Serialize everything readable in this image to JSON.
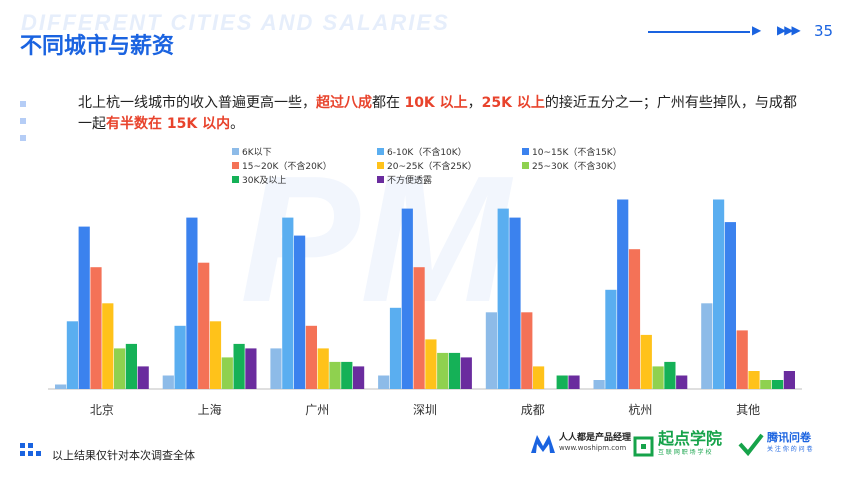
{
  "header": {
    "watermark": "DIFFERENT CITIES AND SALARIES",
    "title": "不同城市与薪资",
    "page_number": "35"
  },
  "summary": {
    "p1": "北上杭一线城市的收入普遍更高一些，",
    "h1": "超过八成",
    "p2": "都在 ",
    "h2": "10K 以上",
    "p3": "，",
    "h3": "25K 以上",
    "p4": "的接近五分之一；广州有些掉队，与成都一起",
    "h4": "有半数在 15K 以内",
    "p5": "。"
  },
  "footer": {
    "note": "以上结果仅针对本次调查全体",
    "logo1_name": "人人都是产品经理",
    "logo1_url": "www.woshipm.com",
    "logo2_name": "起点学院",
    "logo2_sub": "互 联 网 职 场 学 校",
    "logo3_name": "腾讯问卷",
    "logo3_sub": "关 注 你 的 问 卷"
  },
  "chart_data": {
    "type": "bar",
    "categories": [
      "北京",
      "上海",
      "广州",
      "深圳",
      "成都",
      "杭州",
      "其他"
    ],
    "series": [
      {
        "name": "6K以下",
        "color": "#8dbbe8",
        "values": [
          1,
          3,
          9,
          3,
          17,
          2,
          19
        ]
      },
      {
        "name": "6-10K（不含10K）",
        "color": "#5aaef0",
        "values": [
          15,
          14,
          38,
          18,
          40,
          22,
          42
        ]
      },
      {
        "name": "10~15K（不含15K）",
        "color": "#3b82ee",
        "values": [
          36,
          38,
          34,
          40,
          38,
          42,
          37
        ]
      },
      {
        "name": "15~20K（不含20K）",
        "color": "#f47257",
        "values": [
          27,
          28,
          14,
          27,
          17,
          31,
          13
        ]
      },
      {
        "name": "20~25K（不含25K）",
        "color": "#ffc21a",
        "values": [
          19,
          15,
          9,
          11,
          5,
          12,
          4
        ]
      },
      {
        "name": "25~30K（不含30K）",
        "color": "#8fd14f",
        "values": [
          9,
          7,
          6,
          8,
          0,
          5,
          2
        ]
      },
      {
        "name": "30K及以上",
        "color": "#15b157",
        "values": [
          10,
          10,
          6,
          8,
          3,
          6,
          2
        ]
      },
      {
        "name": "不方便透露",
        "color": "#6a2c9e",
        "values": [
          5,
          9,
          5,
          7,
          3,
          3,
          4
        ]
      }
    ],
    "ylim": [
      0,
      45
    ]
  }
}
